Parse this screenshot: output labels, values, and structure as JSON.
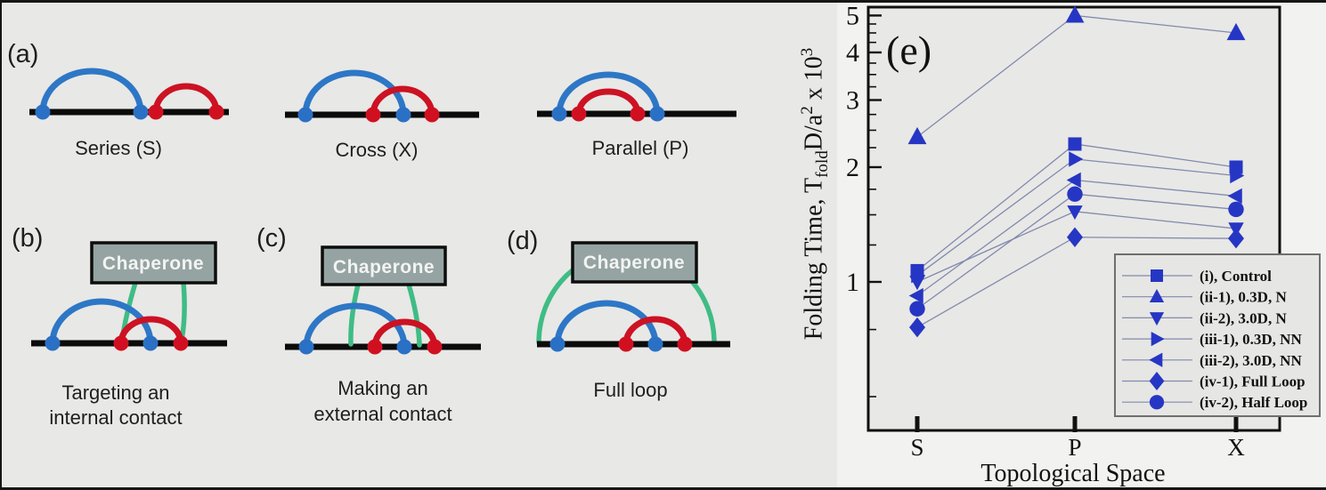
{
  "panels": {
    "a": {
      "label": "(a)",
      "diagrams": [
        {
          "caption": "Series (S)"
        },
        {
          "caption": "Cross (X)"
        },
        {
          "caption": "Parallel (P)"
        }
      ]
    },
    "b": {
      "label": "(b)",
      "chaperone": "Chaperone",
      "caption1": "Targeting an",
      "caption2": "internal contact"
    },
    "c": {
      "label": "(c)",
      "chaperone": "Chaperone",
      "caption1": "Making an",
      "caption2": "external contact"
    },
    "d": {
      "label": "(d)",
      "chaperone": "Chaperone",
      "caption1": "Full loop"
    }
  },
  "chart_labels": {
    "panel_label": "(e)",
    "ylabel_pre": "Folding Time, T",
    "ylabel_sub": "fold",
    "ylabel_mid": "D/a",
    "ylabel_sup1": "2",
    "ylabel_mid2": " x 10",
    "ylabel_sup2": "3"
  },
  "chart_data": {
    "type": "line",
    "title": "(e)",
    "xlabel": "Topological Space",
    "ylabel": "Folding Time, T_fold D/a^2 x 10^3",
    "y_scale": "log",
    "ylim": [
      0.41,
      5.3
    ],
    "y_ticks": [
      1,
      2,
      3,
      4,
      5
    ],
    "categories": [
      "S",
      "P",
      "X"
    ],
    "series": [
      {
        "name": "(i), Control",
        "marker": "square",
        "values": [
          1.07,
          2.3,
          2.0
        ]
      },
      {
        "name": "(ii-1), 0.3D, N",
        "marker": "triangle-up",
        "values": [
          2.4,
          5.0,
          4.5
        ]
      },
      {
        "name": "(ii-2), 3.0D, N",
        "marker": "triangle-down",
        "values": [
          1.0,
          1.53,
          1.38
        ]
      },
      {
        "name": "(iii-1), 0.3D, NN",
        "marker": "triangle-right",
        "values": [
          1.04,
          2.1,
          1.9
        ]
      },
      {
        "name": "(iii-2), 3.0D, NN",
        "marker": "triangle-left",
        "values": [
          0.92,
          1.85,
          1.68
        ]
      },
      {
        "name": "(iv-1), Full Loop",
        "marker": "diamond",
        "values": [
          0.76,
          1.31,
          1.3
        ]
      },
      {
        "name": "(iv-2), Half Loop",
        "marker": "circle",
        "values": [
          0.85,
          1.7,
          1.55
        ]
      }
    ],
    "legend_position": "lower right",
    "grid": false,
    "marker_color": "#2636c4",
    "line_color": "#8289ad",
    "plot_bg": "#e8e8e6"
  }
}
